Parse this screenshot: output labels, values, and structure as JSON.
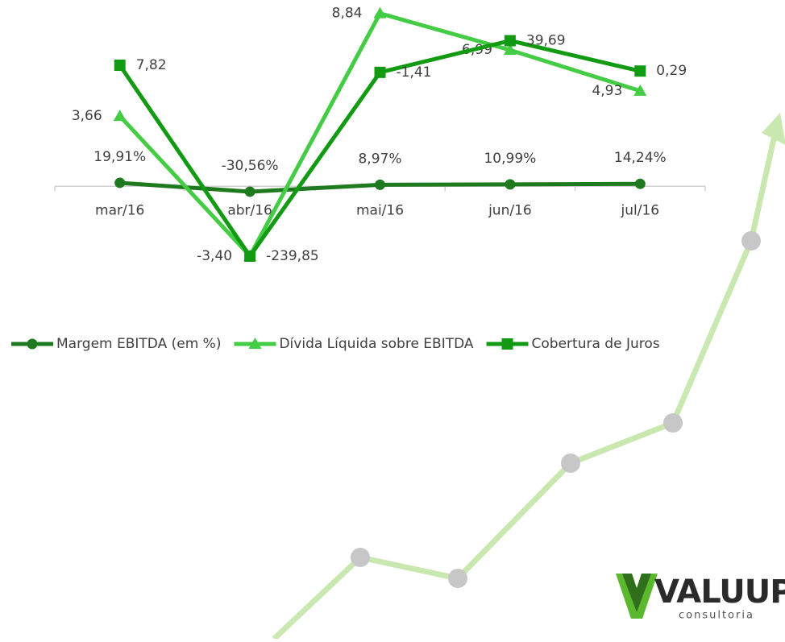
{
  "chart_data": {
    "type": "line",
    "categories": [
      "mar/16",
      "abr/16",
      "mai/16",
      "jun/16",
      "jul/16"
    ],
    "series": [
      {
        "name": "Margem EBITDA (em %)",
        "color": "#1f7a1f",
        "marker": "circle",
        "values": [
          19.91,
          -30.56,
          8.97,
          10.99,
          14.24
        ],
        "value_labels": [
          "19,91%",
          "-30,56%",
          "8,97%",
          "10,99%",
          "14,24%"
        ],
        "ylim": [
          -682,
          1015
        ]
      },
      {
        "name": "Dívida Líquida sobre EBITDA",
        "color": "#44cc44",
        "marker": "triangle",
        "values": [
          3.66,
          -3.4,
          8.84,
          6.99,
          4.93
        ],
        "value_labels": [
          "3,66",
          "-3,40",
          "8,84",
          "6,99",
          "4,93"
        ],
        "ylim": [
          -5.93,
          9.11
        ]
      },
      {
        "name": "Cobertura de Juros",
        "color": "#129a12",
        "marker": "square",
        "values": [
          7.82,
          -239.85,
          -1.41,
          39.69,
          0.29
        ],
        "value_labels": [
          "7,82",
          "-239,85",
          "-1,41",
          "39,69",
          "0,29"
        ],
        "ylim": [
          -304.6,
          82.0
        ]
      }
    ],
    "legend": "bottom-left"
  },
  "logo": {
    "text": "VALUUP",
    "subtitle": "consultoria"
  }
}
